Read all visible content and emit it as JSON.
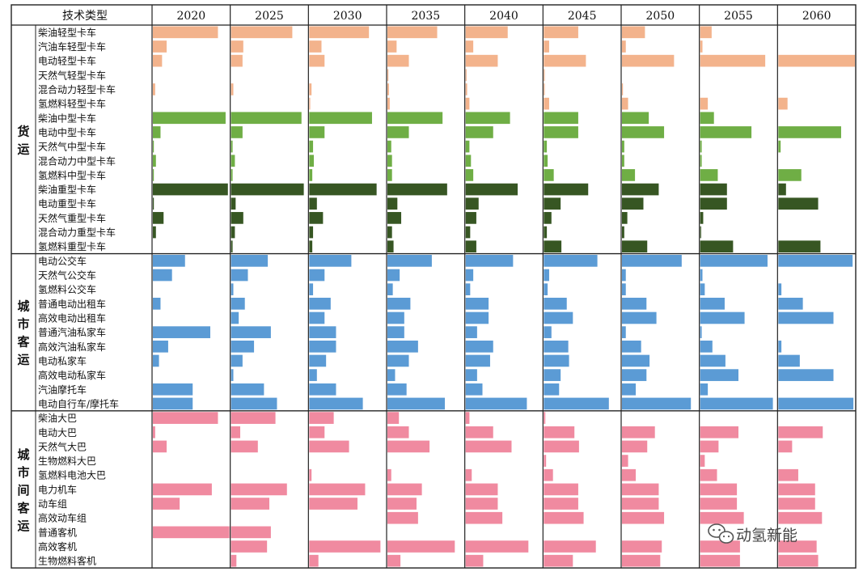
{
  "chart_data": {
    "type": "bar",
    "header_label": "技术类型",
    "years": [
      "2020",
      "2025",
      "2030",
      "2035",
      "2040",
      "2045",
      "2050",
      "2055",
      "2060"
    ],
    "colors": {
      "light_truck": "#f3b38c",
      "medium_truck": "#6fae45",
      "heavy_truck": "#375623",
      "urban_passenger": "#5b9bd5",
      "intercity_passenger": "#f08aa0"
    },
    "groups": [
      {
        "name": "货运",
        "rows": [
          {
            "label": "柴油轻型卡车",
            "color_key": "light_truck",
            "values": [
              0.85,
              0.8,
              0.78,
              0.65,
              0.55,
              0.45,
              0.3,
              0.15,
              0.0
            ]
          },
          {
            "label": "汽油车轻型卡车",
            "color_key": "light_truck",
            "values": [
              0.18,
              0.16,
              0.16,
              0.12,
              0.1,
              0.07,
              0.05,
              0.03,
              0.0
            ]
          },
          {
            "label": "电动轻型卡车",
            "color_key": "light_truck",
            "values": [
              0.12,
              0.15,
              0.2,
              0.28,
              0.42,
              0.55,
              0.68,
              0.85,
              1.0
            ]
          },
          {
            "label": "天然气轻型卡车",
            "color_key": "light_truck",
            "values": [
              0.0,
              0.0,
              0.0,
              0.01,
              0.01,
              0.01,
              0.0,
              0.0,
              0.0
            ]
          },
          {
            "label": "混合动力轻型卡车",
            "color_key": "light_truck",
            "values": [
              0.03,
              0.03,
              0.03,
              0.02,
              0.02,
              0.01,
              0.01,
              0.0,
              0.0
            ]
          },
          {
            "label": "氢燃料轻型卡车",
            "color_key": "light_truck",
            "values": [
              0.0,
              0.0,
              0.01,
              0.03,
              0.05,
              0.07,
              0.08,
              0.1,
              0.12
            ]
          },
          {
            "label": "柴油中型卡车",
            "color_key": "medium_truck",
            "values": [
              0.95,
              0.92,
              0.82,
              0.72,
              0.58,
              0.45,
              0.35,
              0.18,
              0.0
            ]
          },
          {
            "label": "电动中型卡车",
            "color_key": "medium_truck",
            "values": [
              0.1,
              0.15,
              0.2,
              0.28,
              0.36,
              0.45,
              0.55,
              0.67,
              0.82
            ]
          },
          {
            "label": "天然气中型卡车",
            "color_key": "medium_truck",
            "values": [
              0.01,
              0.02,
              0.05,
              0.05,
              0.05,
              0.04,
              0.03,
              0.02,
              0.03
            ]
          },
          {
            "label": "混合动力中型卡车",
            "color_key": "medium_truck",
            "values": [
              0.04,
              0.05,
              0.06,
              0.06,
              0.07,
              0.05,
              0.03,
              0.02,
              0.0
            ]
          },
          {
            "label": "氢燃料中型卡车",
            "color_key": "medium_truck",
            "values": [
              0.01,
              0.02,
              0.04,
              0.06,
              0.1,
              0.13,
              0.17,
              0.23,
              0.3
            ]
          },
          {
            "label": "柴油重型卡车",
            "color_key": "heavy_truck",
            "values": [
              0.98,
              0.95,
              0.88,
              0.78,
              0.68,
              0.58,
              0.48,
              0.35,
              0.1
            ]
          },
          {
            "label": "电动重型卡车",
            "color_key": "heavy_truck",
            "values": [
              0.01,
              0.06,
              0.1,
              0.13,
              0.17,
              0.22,
              0.28,
              0.35,
              0.52
            ]
          },
          {
            "label": "天然气重型卡车",
            "color_key": "heavy_truck",
            "values": [
              0.14,
              0.16,
              0.18,
              0.18,
              0.14,
              0.1,
              0.07,
              0.04,
              0.0
            ]
          },
          {
            "label": "混合动力重型卡车",
            "color_key": "heavy_truck",
            "values": [
              0.04,
              0.05,
              0.05,
              0.06,
              0.06,
              0.04,
              0.03,
              0.01,
              0.0
            ]
          },
          {
            "label": "氢燃料重型卡车",
            "color_key": "heavy_truck",
            "values": [
              0.0,
              0.02,
              0.04,
              0.08,
              0.14,
              0.23,
              0.33,
              0.43,
              0.55
            ]
          }
        ]
      },
      {
        "name": "城市客运",
        "rows": [
          {
            "label": "电动公交车",
            "color_key": "urban_passenger",
            "values": [
              0.42,
              0.48,
              0.55,
              0.58,
              0.62,
              0.7,
              0.78,
              0.88,
              0.97
            ]
          },
          {
            "label": "天然气公交车",
            "color_key": "urban_passenger",
            "values": [
              0.25,
              0.22,
              0.2,
              0.16,
              0.1,
              0.07,
              0.05,
              0.03,
              0.0
            ]
          },
          {
            "label": "氢燃料公交车",
            "color_key": "urban_passenger",
            "values": [
              0.0,
              0.03,
              0.05,
              0.07,
              0.06,
              0.05,
              0.05,
              0.06,
              0.04
            ]
          },
          {
            "label": "普通电动出租车",
            "color_key": "urban_passenger",
            "values": [
              0.1,
              0.18,
              0.28,
              0.3,
              0.3,
              0.3,
              0.32,
              0.32,
              0.32
            ]
          },
          {
            "label": "高效电动出租车",
            "color_key": "urban_passenger",
            "values": [
              0.0,
              0.1,
              0.2,
              0.22,
              0.3,
              0.38,
              0.45,
              0.58,
              0.72
            ]
          },
          {
            "label": "普通汽油私家车",
            "color_key": "urban_passenger",
            "values": [
              0.75,
              0.52,
              0.35,
              0.22,
              0.15,
              0.1,
              0.05,
              0.02,
              0.0
            ]
          },
          {
            "label": "高效汽油私家车",
            "color_key": "urban_passenger",
            "values": [
              0.2,
              0.3,
              0.35,
              0.4,
              0.36,
              0.32,
              0.25,
              0.16,
              0.04
            ]
          },
          {
            "label": "电动私家车",
            "color_key": "urban_passenger",
            "values": [
              0.08,
              0.15,
              0.22,
              0.28,
              0.32,
              0.33,
              0.36,
              0.33,
              0.28
            ]
          },
          {
            "label": "高效电动私家车",
            "color_key": "urban_passenger",
            "values": [
              0.0,
              0.03,
              0.1,
              0.1,
              0.15,
              0.22,
              0.32,
              0.5,
              0.72
            ]
          },
          {
            "label": "汽油摩托车",
            "color_key": "urban_passenger",
            "values": [
              0.52,
              0.43,
              0.35,
              0.25,
              0.22,
              0.2,
              0.18,
              0.1,
              0.0
            ]
          },
          {
            "label": "电动自行车/摩托车",
            "color_key": "urban_passenger",
            "values": [
              0.52,
              0.6,
              0.7,
              0.75,
              0.8,
              0.85,
              0.9,
              0.95,
              0.98
            ]
          }
        ]
      },
      {
        "name": "城市间客运",
        "rows": [
          {
            "label": "柴油大巴",
            "color_key": "intercity_passenger",
            "values": [
              0.85,
              0.58,
              0.32,
              0.15,
              0.05,
              0.02,
              0.0,
              0.0,
              0.0
            ]
          },
          {
            "label": "电动大巴",
            "color_key": "intercity_passenger",
            "values": [
              0.03,
              0.12,
              0.2,
              0.28,
              0.36,
              0.4,
              0.43,
              0.5,
              0.58
            ]
          },
          {
            "label": "天然气大巴",
            "color_key": "intercity_passenger",
            "values": [
              0.18,
              0.35,
              0.52,
              0.55,
              0.6,
              0.46,
              0.33,
              0.24,
              0.18
            ]
          },
          {
            "label": "生物燃料大巴",
            "color_key": "intercity_passenger",
            "values": [
              0.0,
              0.0,
              0.0,
              0.0,
              0.0,
              0.03,
              0.08,
              0.06,
              0.0
            ]
          },
          {
            "label": "氢燃料电池大巴",
            "color_key": "intercity_passenger",
            "values": [
              0.0,
              0.0,
              0.03,
              0.05,
              0.08,
              0.12,
              0.18,
              0.22,
              0.26
            ]
          },
          {
            "label": "电力机车",
            "color_key": "intercity_passenger",
            "values": [
              0.77,
              0.73,
              0.73,
              0.45,
              0.42,
              0.45,
              0.48,
              0.48,
              0.48
            ]
          },
          {
            "label": "动车组",
            "color_key": "intercity_passenger",
            "values": [
              0.35,
              0.5,
              0.63,
              0.38,
              0.42,
              0.45,
              0.48,
              0.48,
              0.48
            ]
          },
          {
            "label": "高效动车组",
            "color_key": "intercity_passenger",
            "values": [
              0.0,
              0.0,
              0.0,
              0.4,
              0.48,
              0.52,
              0.55,
              0.57,
              0.57
            ]
          },
          {
            "label": "普通客机",
            "color_key": "intercity_passenger",
            "values": [
              1.0,
              0.52,
              0.0,
              0.0,
              0.0,
              0.0,
              0.0,
              0.0,
              0.0
            ]
          },
          {
            "label": "高效客机",
            "color_key": "intercity_passenger",
            "values": [
              0.0,
              0.47,
              0.93,
              0.88,
              0.82,
              0.68,
              0.52,
              0.52,
              0.5
            ]
          },
          {
            "label": "生物燃料客机",
            "color_key": "intercity_passenger",
            "values": [
              0.0,
              0.07,
              0.12,
              0.17,
              0.23,
              0.38,
              0.5,
              0.52,
              0.52
            ]
          }
        ]
      }
    ]
  },
  "watermark": {
    "text": "动氢新能",
    "icon": "wechat-icon"
  }
}
